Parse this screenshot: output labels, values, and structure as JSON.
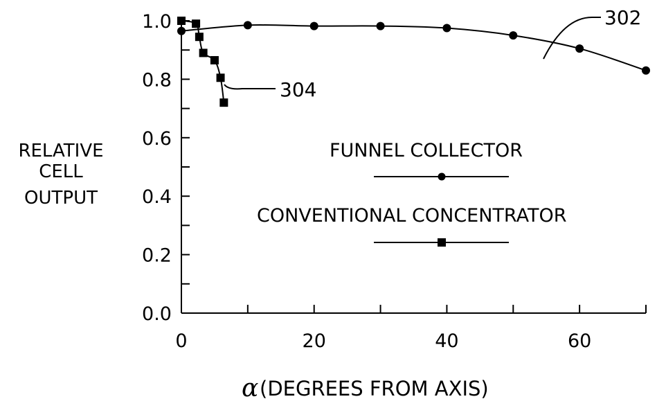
{
  "chart_data": {
    "type": "scatter",
    "xlabel_symbol": "α",
    "xlabel": "(DEGREES FROM AXIS)",
    "ylabel": [
      "RELATIVE",
      "CELL",
      "OUTPUT"
    ],
    "xlim": [
      0,
      70
    ],
    "ylim": [
      0,
      1.0
    ],
    "x_ticks": [
      0,
      10,
      20,
      30,
      40,
      50,
      60,
      70
    ],
    "x_tick_labels": [
      "0",
      "20",
      "40",
      "60"
    ],
    "x_tick_label_values": [
      0,
      20,
      40,
      60
    ],
    "y_ticks": [
      0,
      0.1,
      0.2,
      0.3,
      0.4,
      0.5,
      0.6,
      0.7,
      0.8,
      0.9,
      1.0
    ],
    "y_tick_labels": [
      "0.0",
      "0.2",
      "0.4",
      "0.6",
      "0.8",
      "1.0"
    ],
    "y_tick_label_values": [
      0,
      0.2,
      0.4,
      0.6,
      0.8,
      1.0
    ],
    "grid": false,
    "series": [
      {
        "name": "FUNNEL COLLECTOR",
        "marker": "circle",
        "ref": "302",
        "x": [
          0,
          10,
          20,
          30,
          40,
          50,
          60,
          70
        ],
        "y": [
          0.965,
          0.985,
          0.982,
          0.982,
          0.975,
          0.95,
          0.905,
          0.83
        ]
      },
      {
        "name": "CONVENTIONAL CONCENTRATOR",
        "marker": "square",
        "ref": "304",
        "x": [
          0,
          2.2,
          2.7,
          3.3,
          5.0,
          5.9,
          6.4
        ],
        "y": [
          1.0,
          0.99,
          0.945,
          0.89,
          0.865,
          0.805,
          0.72
        ]
      }
    ],
    "legend_position": "center-right",
    "annotations": [
      "302",
      "304"
    ]
  }
}
